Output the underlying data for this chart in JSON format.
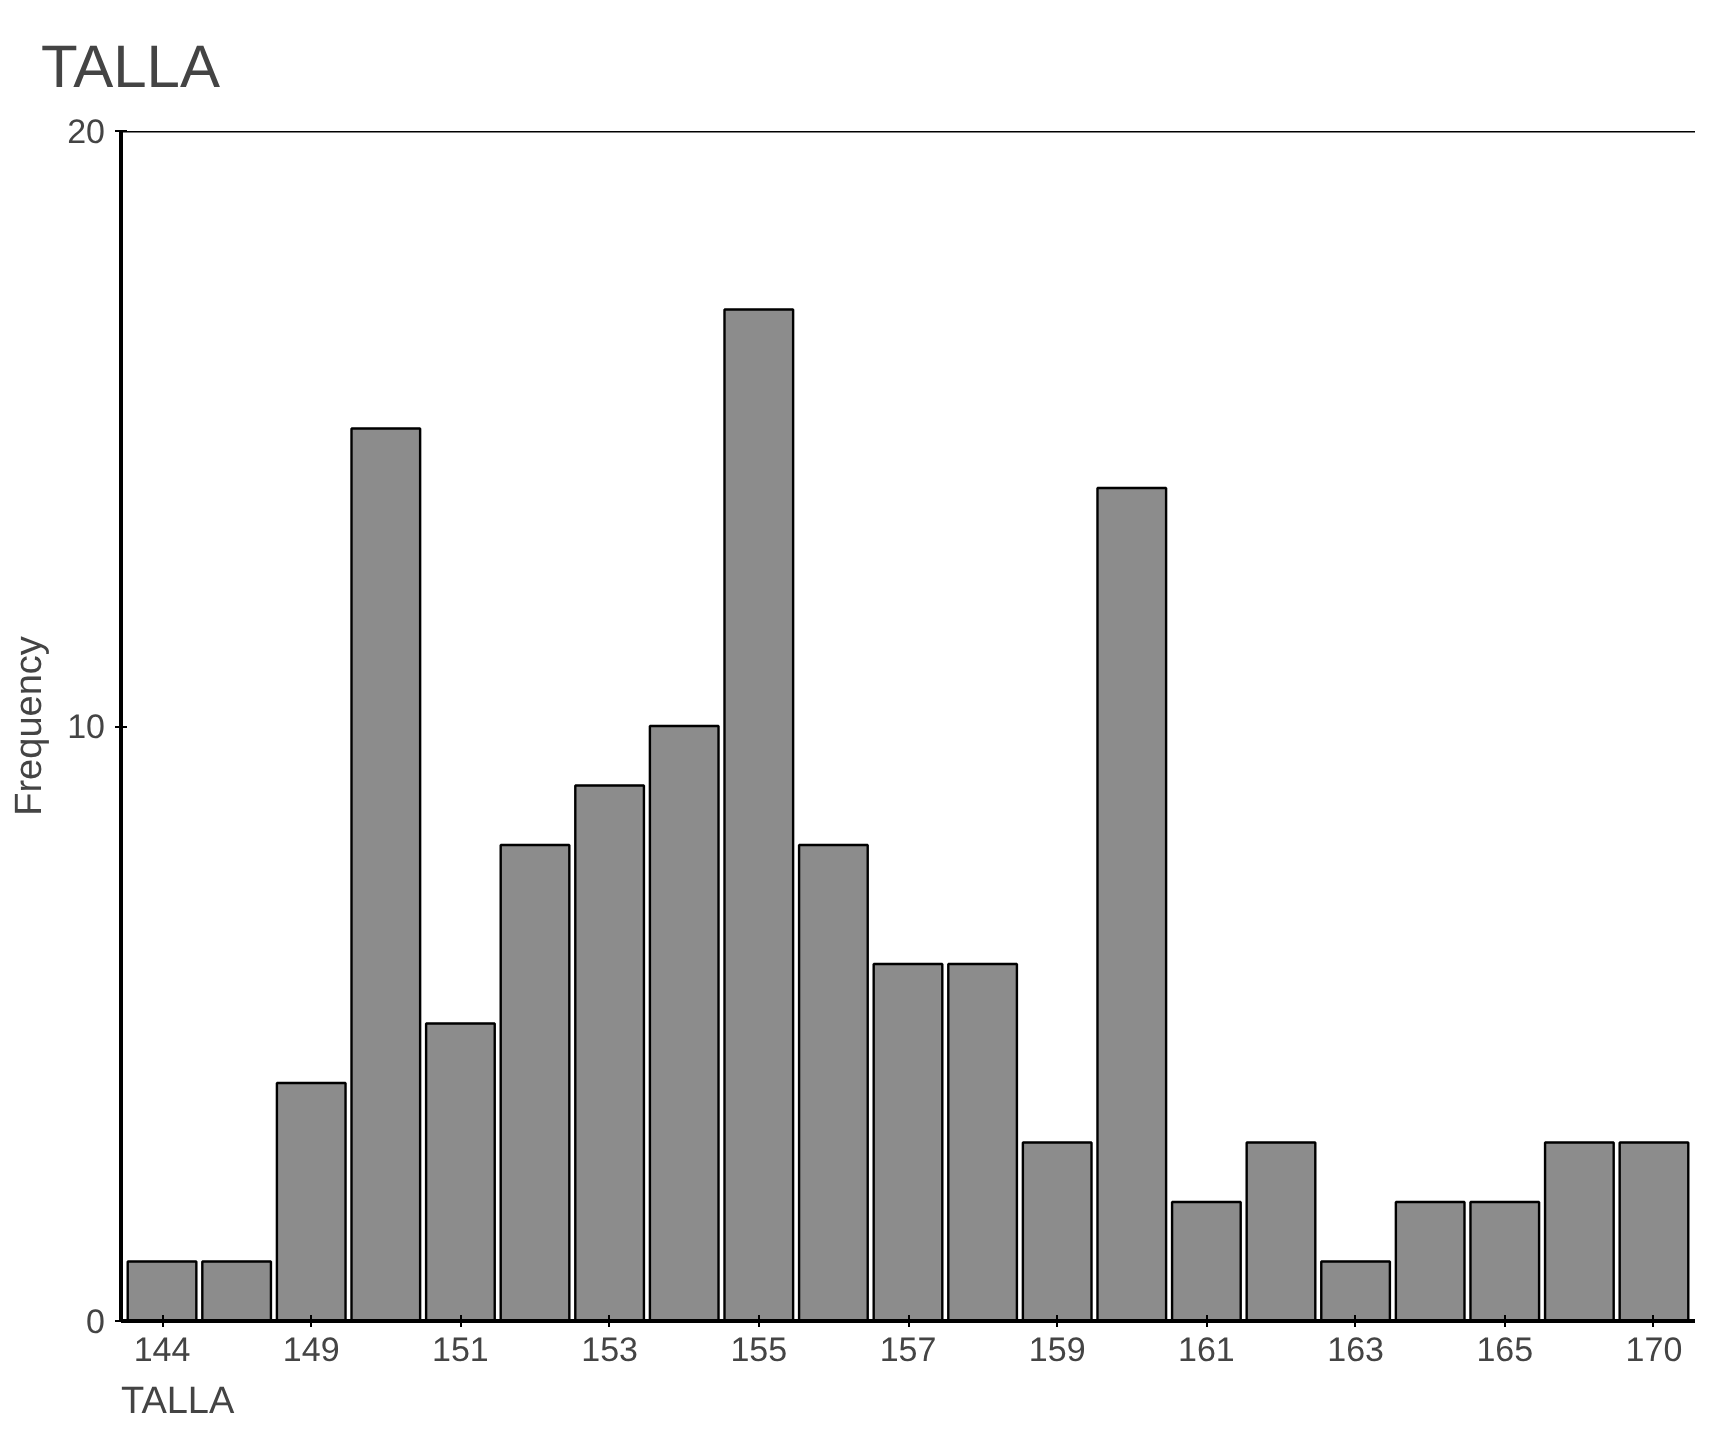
{
  "chart_data": {
    "type": "bar",
    "title": "TALLA",
    "xlabel": "TALLA",
    "ylabel": "Frequency",
    "categories": [
      "144",
      null,
      "149",
      null,
      "151",
      null,
      "153",
      null,
      "155",
      null,
      "157",
      null,
      "159",
      null,
      "161",
      null,
      "163",
      null,
      "165",
      null,
      "170"
    ],
    "values": [
      1,
      1,
      4,
      15,
      5,
      8,
      9,
      10,
      17,
      8,
      6,
      6,
      3,
      14,
      2,
      3,
      1,
      2,
      2,
      3,
      3
    ],
    "color": "#8c8c8c",
    "ylim": [
      0,
      20
    ],
    "yticks": [
      0,
      10,
      20
    ],
    "grid": false
  }
}
